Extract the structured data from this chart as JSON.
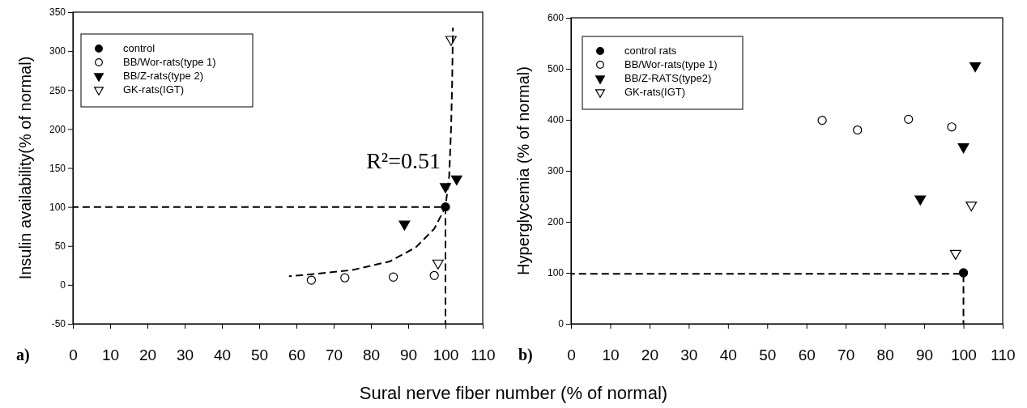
{
  "chart_data": [
    {
      "type": "scatter",
      "xlabel": "Sural nerve fiber number (% of normal)",
      "ylabel": "Insulin availability(% of normal)",
      "xlim": [
        0,
        110
      ],
      "xticks": [
        0,
        10,
        20,
        30,
        40,
        50,
        60,
        70,
        80,
        90,
        100,
        110
      ],
      "ylim": [
        -50,
        350
      ],
      "yticks": [
        -50,
        0,
        50,
        100,
        150,
        200,
        250,
        300,
        350
      ],
      "legend": "top left",
      "grid": false,
      "annotations": [
        "a)",
        {
          "text": "R²=0.51",
          "x": 100,
          "y": 150
        }
      ],
      "series": [
        {
          "name": "control",
          "color": "#000000",
          "marker": "circle",
          "x": [
            100
          ],
          "values": [
            100
          ]
        },
        {
          "name": "BB/Wor-rats(type 1)",
          "color": "#ffffff",
          "marker": "circle",
          "x": [
            64,
            73,
            86,
            97
          ],
          "values": [
            6,
            9,
            10,
            12
          ]
        },
        {
          "name": "BB/Z-rats(type 2)",
          "color": "#000000",
          "marker": "triangle",
          "x": [
            89,
            100,
            103
          ],
          "values": [
            78,
            126,
            136
          ]
        },
        {
          "name": "GK-rats(IGT)",
          "color": "#ffffff",
          "marker": "triangle",
          "x": [
            98,
            101.5
          ],
          "values": [
            28,
            315
          ]
        },
        {
          "type": "line",
          "color": "#000000",
          "line_style": "dashed",
          "x": [
            58,
            65,
            75,
            85,
            92,
            97,
            100,
            101,
            101.5,
            101.8,
            102
          ],
          "values": [
            11,
            14,
            19,
            30,
            48,
            72,
            100,
            140,
            200,
            260,
            330
          ]
        },
        {
          "type": "line",
          "color": "#000000",
          "line_style": "dashed",
          "x": [
            0,
            100,
            100
          ],
          "values": [
            100,
            100,
            -50
          ]
        }
      ]
    },
    {
      "type": "scatter",
      "ylabel": "Hyperglycemia (% of normal)",
      "xlim": [
        0,
        110
      ],
      "xticks": [
        0,
        10,
        20,
        30,
        40,
        50,
        60,
        70,
        80,
        90,
        100,
        110
      ],
      "ylim": [
        0,
        600
      ],
      "yticks": [
        0,
        100,
        200,
        300,
        400,
        500,
        600
      ],
      "legend": "top left",
      "grid": false,
      "annotations": [
        "b)"
      ],
      "series": [
        {
          "name": "control rats",
          "color": "#000000",
          "marker": "circle",
          "x": [
            100
          ],
          "values": [
            100
          ]
        },
        {
          "name": "BB/Wor-rats(type 1)",
          "color": "#ffffff",
          "marker": "circle",
          "x": [
            64,
            73,
            86,
            97
          ],
          "values": [
            399,
            380,
            401,
            386
          ]
        },
        {
          "name": "BB/Z-RATS(type2)",
          "color": "#000000",
          "marker": "triangle",
          "x": [
            89,
            100,
            103
          ],
          "values": [
            245,
            347,
            506
          ]
        },
        {
          "name": "GK-rats(IGT)",
          "color": "#ffffff",
          "marker": "triangle",
          "x": [
            98,
            102
          ],
          "values": [
            138,
            233
          ]
        },
        {
          "type": "line",
          "color": "#000000",
          "line_style": "dashed",
          "x": [
            0,
            100,
            100
          ],
          "values": [
            98,
            98,
            0
          ]
        }
      ]
    }
  ]
}
